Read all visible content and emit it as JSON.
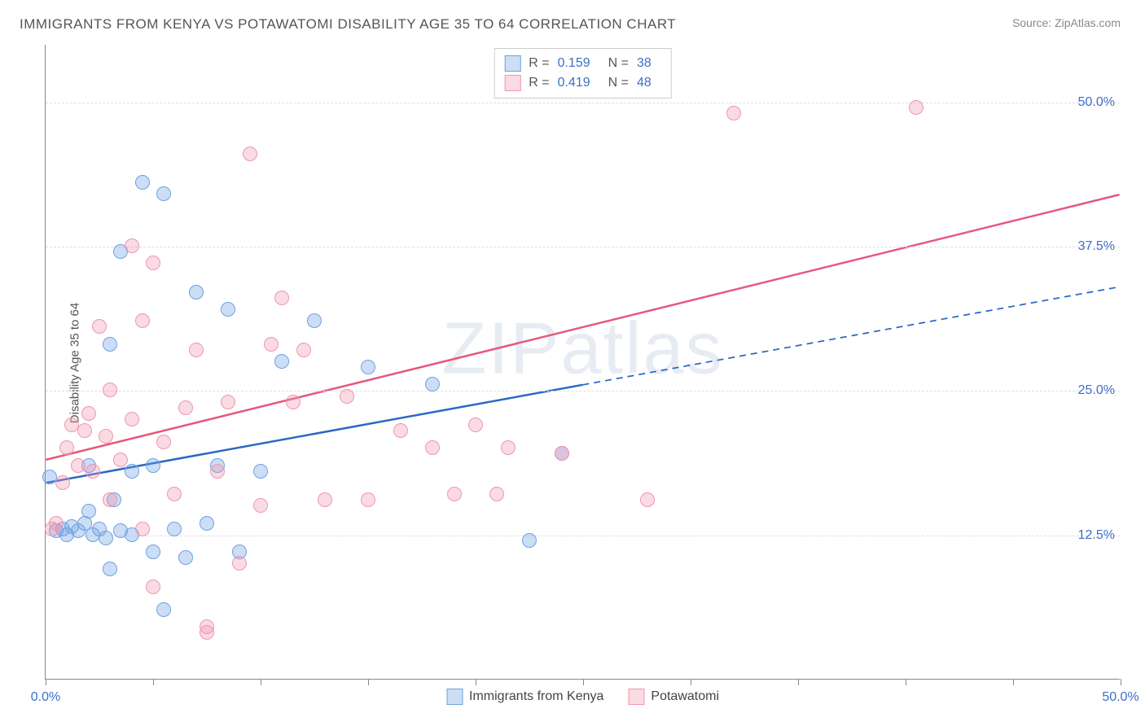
{
  "chart": {
    "type": "scatter",
    "title": "IMMIGRANTS FROM KENYA VS POTAWATOMI DISABILITY AGE 35 TO 64 CORRELATION CHART",
    "source": "Source: ZipAtlas.com",
    "ylabel": "Disability Age 35 to 64",
    "watermark": "ZIPatlas",
    "background_color": "#ffffff",
    "grid_color": "#dddddd",
    "axis_color": "#888888",
    "text_color": "#555555",
    "tick_label_color": "#3b6fc9",
    "xlim": [
      0,
      50
    ],
    "ylim": [
      0,
      55
    ],
    "y_gridlines": [
      12.5,
      25.0,
      37.5,
      50.0
    ],
    "y_tick_labels": [
      "12.5%",
      "25.0%",
      "37.5%",
      "50.0%"
    ],
    "x_ticks": [
      0,
      5,
      10,
      15,
      20,
      25,
      30,
      35,
      40,
      45,
      50
    ],
    "x_tick_labels": {
      "0": "0.0%",
      "50": "50.0%"
    },
    "marker_radius": 9,
    "marker_stroke_width": 1.5,
    "series": [
      {
        "name": "Immigrants from Kenya",
        "fill_color": "rgba(110,160,225,0.35)",
        "stroke_color": "#6ea0e1",
        "r_value": "0.159",
        "n_value": "38",
        "trend": {
          "x1": 0,
          "y1": 17.0,
          "x2": 25,
          "y2": 25.5,
          "x2_dash": 50,
          "y2_dash": 34.0,
          "color": "#2b68c5",
          "width": 2.5
        },
        "points": [
          [
            0.2,
            17.5
          ],
          [
            0.5,
            12.8
          ],
          [
            0.8,
            13.0
          ],
          [
            1.0,
            12.5
          ],
          [
            1.2,
            13.2
          ],
          [
            1.5,
            12.8
          ],
          [
            1.8,
            13.5
          ],
          [
            2.0,
            14.5
          ],
          [
            2.0,
            18.5
          ],
          [
            2.2,
            12.5
          ],
          [
            2.5,
            13.0
          ],
          [
            2.8,
            12.2
          ],
          [
            3.0,
            9.5
          ],
          [
            3.0,
            29.0
          ],
          [
            3.2,
            15.5
          ],
          [
            3.5,
            12.8
          ],
          [
            3.5,
            37.0
          ],
          [
            4.0,
            12.5
          ],
          [
            4.0,
            18.0
          ],
          [
            4.5,
            43.0
          ],
          [
            5.0,
            11.0
          ],
          [
            5.0,
            18.5
          ],
          [
            5.5,
            42.0
          ],
          [
            5.5,
            6.0
          ],
          [
            6.0,
            13.0
          ],
          [
            6.5,
            10.5
          ],
          [
            7.0,
            33.5
          ],
          [
            7.5,
            13.5
          ],
          [
            8.0,
            18.5
          ],
          [
            8.5,
            32.0
          ],
          [
            9.0,
            11.0
          ],
          [
            10.0,
            18.0
          ],
          [
            11.0,
            27.5
          ],
          [
            12.5,
            31.0
          ],
          [
            15.0,
            27.0
          ],
          [
            18.0,
            25.5
          ],
          [
            22.5,
            12.0
          ],
          [
            24.0,
            19.5
          ]
        ]
      },
      {
        "name": "Potawatomi",
        "fill_color": "rgba(240,150,175,0.35)",
        "stroke_color": "#f096af",
        "r_value": "0.419",
        "n_value": "48",
        "trend": {
          "x1": 0,
          "y1": 19.0,
          "x2": 50,
          "y2": 42.0,
          "x2_dash": 50,
          "y2_dash": 42.0,
          "color": "#e6587c",
          "width": 2.5
        },
        "points": [
          [
            0.3,
            13.0
          ],
          [
            0.5,
            13.5
          ],
          [
            0.8,
            17.0
          ],
          [
            1.0,
            20.0
          ],
          [
            1.2,
            22.0
          ],
          [
            1.5,
            18.5
          ],
          [
            1.8,
            21.5
          ],
          [
            2.0,
            23.0
          ],
          [
            2.2,
            18.0
          ],
          [
            2.5,
            30.5
          ],
          [
            2.8,
            21.0
          ],
          [
            3.0,
            25.0
          ],
          [
            3.0,
            15.5
          ],
          [
            3.5,
            19.0
          ],
          [
            4.0,
            37.5
          ],
          [
            4.0,
            22.5
          ],
          [
            4.5,
            31.0
          ],
          [
            5.0,
            36.0
          ],
          [
            5.0,
            8.0
          ],
          [
            5.5,
            20.5
          ],
          [
            6.0,
            16.0
          ],
          [
            6.5,
            23.5
          ],
          [
            7.0,
            28.5
          ],
          [
            7.5,
            4.5
          ],
          [
            8.0,
            18.0
          ],
          [
            8.5,
            24.0
          ],
          [
            9.0,
            10.0
          ],
          [
            9.5,
            45.5
          ],
          [
            10.0,
            15.0
          ],
          [
            10.5,
            29.0
          ],
          [
            11.0,
            33.0
          ],
          [
            11.5,
            24.0
          ],
          [
            12.0,
            28.5
          ],
          [
            13.0,
            15.5
          ],
          [
            14.0,
            24.5
          ],
          [
            15.0,
            15.5
          ],
          [
            16.5,
            21.5
          ],
          [
            18.0,
            20.0
          ],
          [
            19.0,
            16.0
          ],
          [
            20.0,
            22.0
          ],
          [
            21.0,
            16.0
          ],
          [
            21.5,
            20.0
          ],
          [
            24.0,
            19.5
          ],
          [
            28.0,
            15.5
          ],
          [
            32.0,
            49.0
          ],
          [
            40.5,
            49.5
          ],
          [
            7.5,
            4.0
          ],
          [
            4.5,
            13.0
          ]
        ]
      }
    ],
    "bottom_legend": [
      {
        "label": "Immigrants from Kenya",
        "fill": "rgba(110,160,225,0.35)",
        "stroke": "#6ea0e1"
      },
      {
        "label": "Potawatomi",
        "fill": "rgba(240,150,175,0.35)",
        "stroke": "#f096af"
      }
    ]
  }
}
